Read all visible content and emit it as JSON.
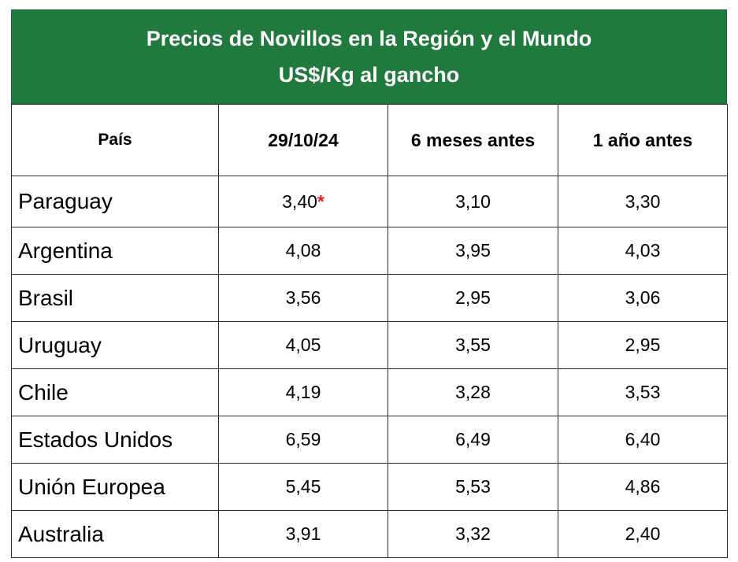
{
  "title": {
    "line1": "Precios de Novillos en la Región y el Mundo",
    "line2": "US$/Kg al gancho"
  },
  "columns": [
    "País",
    "29/10/24",
    "6 meses antes",
    "1 año antes"
  ],
  "rows": [
    {
      "country": "Paraguay",
      "current": "3,40",
      "mark": "*",
      "six_months": "3,10",
      "one_year": "3,30"
    },
    {
      "country": "Argentina",
      "current": "4,08",
      "mark": "",
      "six_months": "3,95",
      "one_year": "4,03"
    },
    {
      "country": "Brasil",
      "current": "3,56",
      "mark": "",
      "six_months": "2,95",
      "one_year": "3,06"
    },
    {
      "country": "Uruguay",
      "current": "4,05",
      "mark": "",
      "six_months": "3,55",
      "one_year": "2,95"
    },
    {
      "country": "Chile",
      "current": "4,19",
      "mark": "",
      "six_months": "3,28",
      "one_year": "3,53"
    },
    {
      "country": "Estados Unidos",
      "current": "6,59",
      "mark": "",
      "six_months": "6,49",
      "one_year": "6,40"
    },
    {
      "country": "Unión Europea",
      "current": "5,45",
      "mark": "",
      "six_months": "5,53",
      "one_year": "4,86"
    },
    {
      "country": "Australia",
      "current": "3,91",
      "mark": "",
      "six_months": "3,32",
      "one_year": "2,40"
    }
  ],
  "colors": {
    "header_green": "#217a3d",
    "asterisk": "#e0201a"
  }
}
